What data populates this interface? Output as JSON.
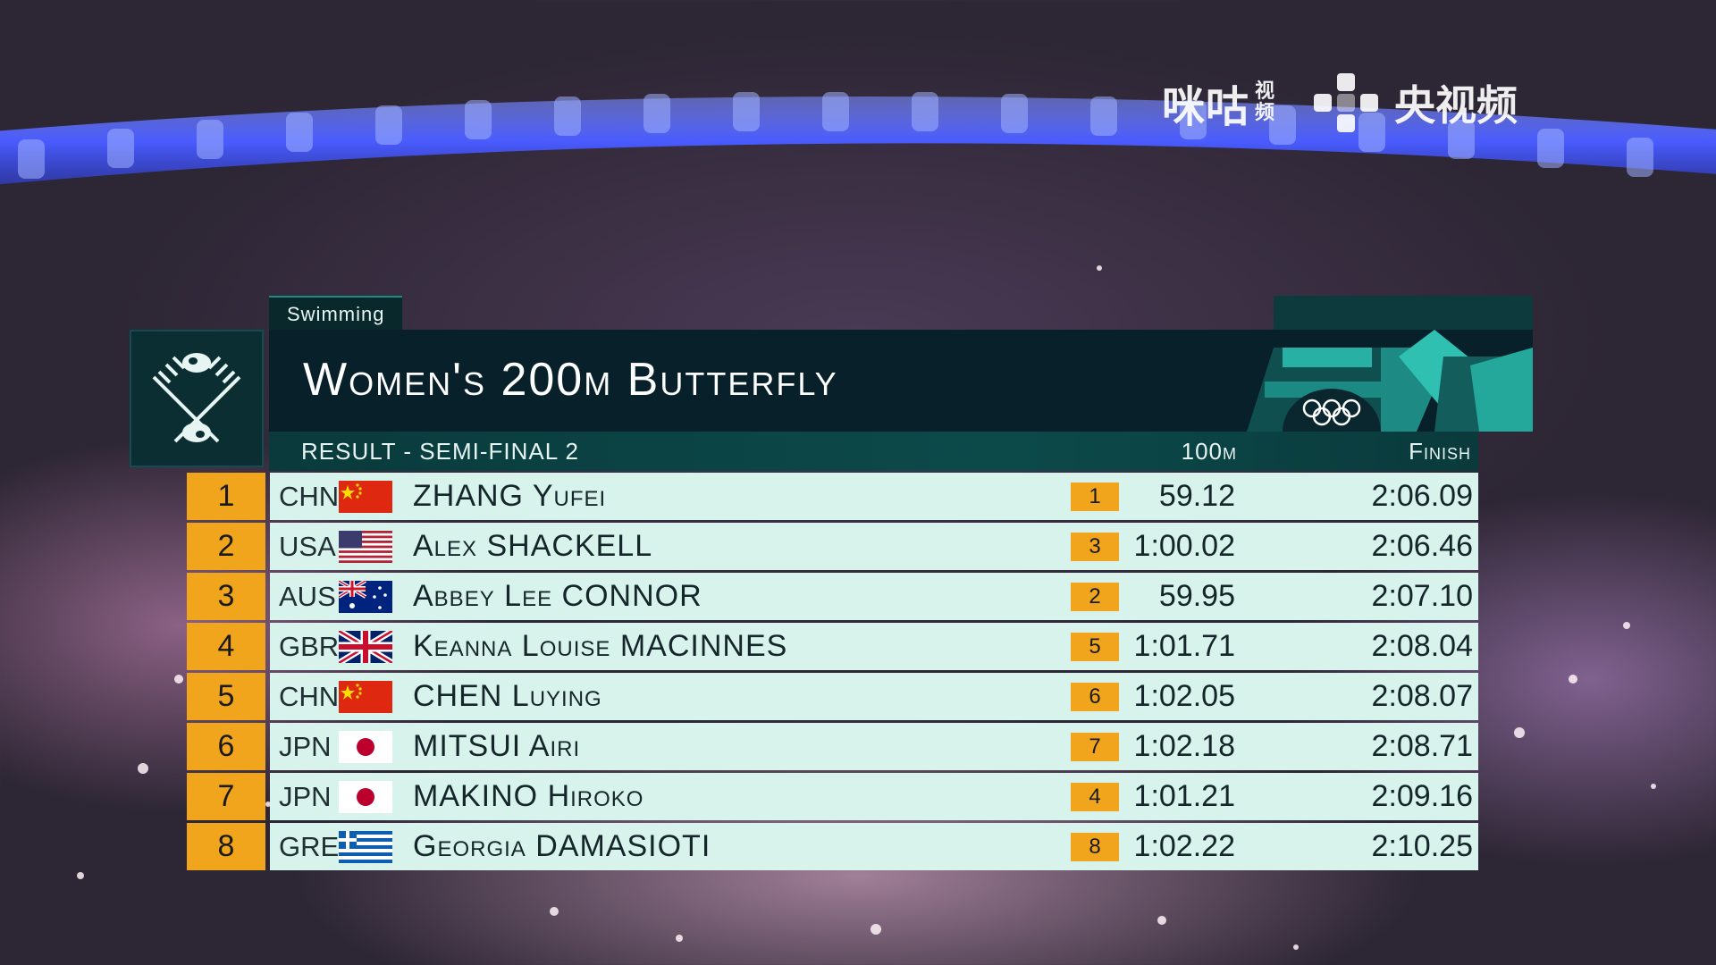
{
  "watermark": {
    "migu_main": "咪咕",
    "migu_sub_1": "视",
    "migu_sub_2": "频",
    "cctv_text": "央视频"
  },
  "event": {
    "sport": "Swimming",
    "title": "Women's 200m Butterfly",
    "stage": "RESULT - SEMI-FINAL 2",
    "col_split": "100m",
    "col_finish": "Finish"
  },
  "results": [
    {
      "rank": "1",
      "noc": "CHN",
      "flag": "chn-flag-icon",
      "name": "ZHANG Yufei",
      "split_rank": "1",
      "split_time": "59.12",
      "finish_time": "2:06.09"
    },
    {
      "rank": "2",
      "noc": "USA",
      "flag": "usa-flag-icon",
      "name": "Alex SHACKELL",
      "split_rank": "3",
      "split_time": "1:00.02",
      "finish_time": "2:06.46"
    },
    {
      "rank": "3",
      "noc": "AUS",
      "flag": "aus-flag-icon",
      "name": "Abbey Lee CONNOR",
      "split_rank": "2",
      "split_time": "59.95",
      "finish_time": "2:07.10"
    },
    {
      "rank": "4",
      "noc": "GBR",
      "flag": "gbr-flag-icon",
      "name": "Keanna Louise MACINNES",
      "split_rank": "5",
      "split_time": "1:01.71",
      "finish_time": "2:08.04"
    },
    {
      "rank": "5",
      "noc": "CHN",
      "flag": "chn-flag-icon",
      "name": "CHEN Luying",
      "split_rank": "6",
      "split_time": "1:02.05",
      "finish_time": "2:08.07"
    },
    {
      "rank": "6",
      "noc": "JPN",
      "flag": "jpn-flag-icon",
      "name": "MITSUI Airi",
      "split_rank": "7",
      "split_time": "1:02.18",
      "finish_time": "2:08.71"
    },
    {
      "rank": "7",
      "noc": "JPN",
      "flag": "jpn-flag-icon",
      "name": "MAKINO Hiroko",
      "split_rank": "4",
      "split_time": "1:01.21",
      "finish_time": "2:09.16"
    },
    {
      "rank": "8",
      "noc": "GRE",
      "flag": "gre-flag-icon",
      "name": "Georgia DAMASIOTI",
      "split_rank": "8",
      "split_time": "1:02.22",
      "finish_time": "2:10.25"
    }
  ],
  "colors": {
    "rank_orange": "#f1a51c",
    "row_bg": "#d8f2ec",
    "panel_dark": "#07202a",
    "accent_teal": "#1fb3a6"
  }
}
